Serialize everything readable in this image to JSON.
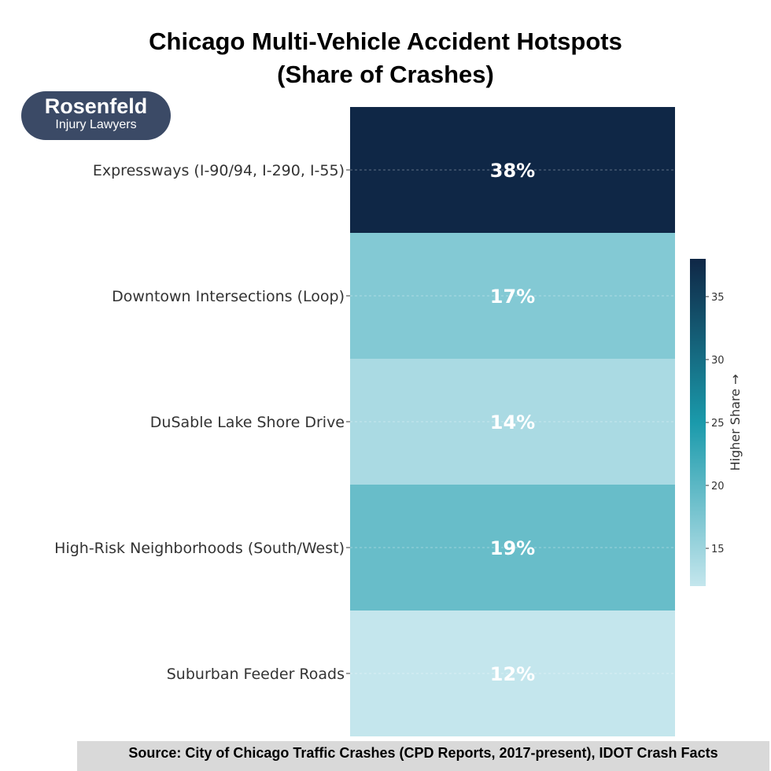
{
  "chart_data": {
    "type": "heatmap",
    "title": "Chicago Multi-Vehicle Accident Hotspots",
    "subtitle": "(Share of Crashes)",
    "categories": [
      "Expressways (I-90/94, I-290, I-55)",
      "Downtown Intersections (Loop)",
      "DuSable Lake Shore Drive",
      "High-Risk Neighborhoods (South/West)",
      "Suburban Feeder Roads"
    ],
    "values": [
      38,
      17,
      14,
      19,
      12
    ],
    "data_labels": [
      "38%",
      "17%",
      "14%",
      "19%",
      "12%"
    ],
    "colorbar": {
      "label": "Higher Share →",
      "range": [
        12,
        38
      ],
      "ticks": [
        15,
        20,
        25,
        30,
        35
      ],
      "tick_labels": [
        "15",
        "20",
        "25",
        "30",
        "35"
      ],
      "colors": [
        "#c4e6ed",
        "#1a9aab",
        "#0f2746"
      ]
    },
    "grid": false
  },
  "logo": {
    "line1": "Rosenfeld",
    "line2": "Injury Lawyers"
  },
  "source": "Source: City of Chicago Traffic Crashes (CPD Reports, 2017-present), IDOT Crash Facts"
}
